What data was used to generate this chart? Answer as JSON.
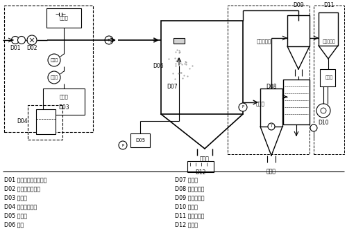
{
  "bg_color": "#ffffff",
  "line_color": "#000000",
  "legend_left": [
    "D01 空气过滤器（选配）",
    "D02 送风机（选配）",
    "D03 加热器",
    "D04 料槽（选配）",
    "D05 供料泵",
    "D06 喷枪"
  ],
  "legend_right": [
    "D07 干燥塔",
    "D08 一级吸尘塔",
    "D09 二级吸尘塔",
    "D10 引风机",
    "D11 湿式除尘器",
    "D12 震动筛"
  ]
}
